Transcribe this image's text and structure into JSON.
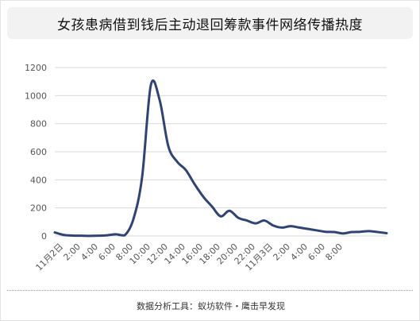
{
  "title": "女孩患病借到钱后主动退回筹款事件网络传播热度",
  "footer": "数据分析工具：蚁坊软件・鹰击早发现",
  "colors": {
    "line": "#2f4476",
    "grid": "#d9d9d9",
    "axis_text": "#555555"
  },
  "chart_data": {
    "type": "line",
    "title": "女孩患病借到钱后主动退回筹款事件网络传播热度",
    "xlabel": "",
    "ylabel": "",
    "ylim": [
      0,
      1200
    ],
    "yticks": [
      0,
      200,
      400,
      600,
      800,
      1000,
      1200
    ],
    "grid": true,
    "x_tick_labels": [
      "11月2日",
      "2:00",
      "4:00",
      "6:00",
      "8:00",
      "10:00",
      "12:00",
      "14:00",
      "16:00",
      "18:00",
      "20:00",
      "22:00",
      "11月3日",
      "2:00",
      "4:00",
      "6:00",
      "8:00"
    ],
    "series": [
      {
        "values": [
          25,
          8,
          3,
          2,
          1,
          2,
          5,
          12,
          5,
          120,
          420,
          1075,
          970,
          640,
          530,
          470,
          370,
          280,
          210,
          140,
          180,
          130,
          110,
          90,
          110,
          75,
          60,
          70,
          60,
          50,
          40,
          30,
          28,
          18,
          28,
          30,
          35,
          28,
          20
        ]
      }
    ]
  }
}
